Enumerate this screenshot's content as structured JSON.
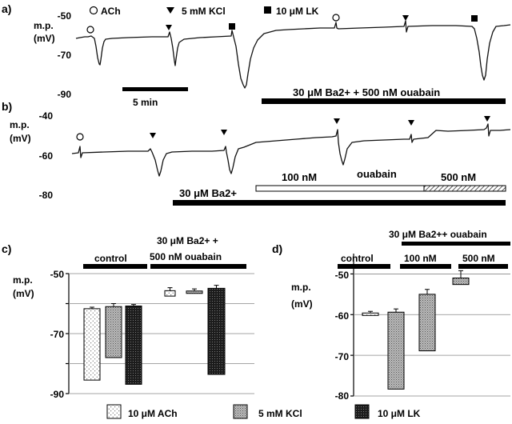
{
  "panel_a": {
    "label": "a)",
    "ylabel_1": "m.p.",
    "ylabel_2": "(mV)",
    "yticks": [
      "-50",
      "-70",
      "-90"
    ],
    "legend": [
      {
        "symbol": "circle",
        "text": "ACh"
      },
      {
        "symbol": "triangle",
        "text": "5 mM KCl"
      },
      {
        "symbol": "square",
        "text": "10 μM LK"
      }
    ],
    "scale_bar": "5 min",
    "treatment": "30 μM Ba2+ + 500 nM ouabain"
  },
  "panel_b": {
    "label": "b)",
    "ylabel_1": "m.p.",
    "ylabel_2": "(mV)",
    "yticks": [
      "-40",
      "-60",
      "-80"
    ],
    "ba_label": "30 μM Ba2+",
    "conc_100": "100 nM",
    "ouabain": "ouabain",
    "conc_500": "500 nM"
  },
  "panel_c": {
    "label": "c)",
    "ylabel_1": "m.p.",
    "ylabel_2": "(mV)",
    "yticks": [
      "-50",
      "-70",
      "-90"
    ],
    "group_control": "control",
    "group_treat_1": "30 μM Ba2+ +",
    "group_treat_2": "500 nM ouabain"
  },
  "panel_d": {
    "label": "d)",
    "ylabel_1": "m.p.",
    "ylabel_2": "(mV)",
    "yticks": [
      "-50",
      "-60",
      "-70",
      "-80"
    ],
    "header": "30 μM Ba2++ ouabain",
    "group_control": "control",
    "group_100": "100 nM",
    "group_500": "500 nM"
  },
  "bottom_legend": [
    {
      "pattern": "ach",
      "text": "10 μM ACh"
    },
    {
      "pattern": "kcl",
      "text": "5 mM KCl"
    },
    {
      "pattern": "lk",
      "text": "10 μM LK"
    }
  ],
  "chart_data": [
    {
      "type": "line",
      "panel": "a",
      "ylabel": "m.p. (mV)",
      "ylim": [
        -90,
        -50
      ],
      "baseline_mV": [
        -63,
        -60,
        -57
      ],
      "events": [
        {
          "agent": "ACh",
          "nadir_mV": -76
        },
        {
          "agent": "5 mM KCl",
          "nadir_mV": -75
        },
        {
          "agent": "10 μM LK",
          "nadir_mV": -87
        },
        {
          "agent": "ACh",
          "nadir_mV": -59
        },
        {
          "agent": "5 mM KCl",
          "nadir_mV": -62
        },
        {
          "agent": "10 μM LK",
          "nadir_mV": -85
        }
      ]
    },
    {
      "type": "line",
      "panel": "b",
      "ylabel": "m.p. (mV)",
      "ylim": [
        -80,
        -40
      ],
      "baseline_mV": [
        -59,
        -52,
        -48
      ],
      "events": [
        {
          "agent": "ACh",
          "nadir_mV": -60
        },
        {
          "agent": "5 mM KCl",
          "nadir_mV": -73
        },
        {
          "agent": "10 μM LK",
          "nadir_mV": -67
        },
        {
          "agent": "5 mM KCl",
          "nadir_mV": -64
        },
        {
          "agent": "5 mM KCl",
          "nadir_mV": -55
        },
        {
          "agent": "5 mM KCl",
          "nadir_mV": -51
        }
      ]
    },
    {
      "type": "bar",
      "panel": "c",
      "ylabel": "m.p. (mV)",
      "ylim": [
        -90,
        -50
      ],
      "categories": [
        "control",
        "30 μM Ba2+ + 500 nM ouabain"
      ],
      "series": [
        {
          "name": "10 μM ACh",
          "from": [
            -61.7,
            -55.7
          ],
          "to": [
            -85.5,
            -57.5
          ],
          "err": [
            0.5,
            1.0
          ]
        },
        {
          "name": "5 mM KCl",
          "from": [
            -61.0,
            -55.8
          ],
          "to": [
            -78.0,
            -56.6
          ],
          "err": [
            1.0,
            0.7
          ]
        },
        {
          "name": "10 μM LK",
          "from": [
            -60.8,
            -54.9
          ],
          "to": [
            -86.9,
            -83.6
          ],
          "err": [
            0.5,
            1.0
          ]
        }
      ]
    },
    {
      "type": "bar",
      "panel": "d",
      "ylabel": "m.p. (mV)",
      "ylim": [
        -80,
        -45
      ],
      "categories": [
        "control",
        "100 nM",
        "500 nM"
      ],
      "series": [
        {
          "name": "10 μM ACh",
          "from": [
            -59.6
          ],
          "to": [
            -60.2
          ],
          "err": [
            0.4
          ]
        },
        {
          "name": "5 mM KCl",
          "from": [
            -59.4,
            -55.0,
            -51.0
          ],
          "to": [
            -78.3,
            -68.9,
            -52.6
          ],
          "err": [
            0.8,
            1.2,
            1.8
          ]
        }
      ]
    }
  ]
}
